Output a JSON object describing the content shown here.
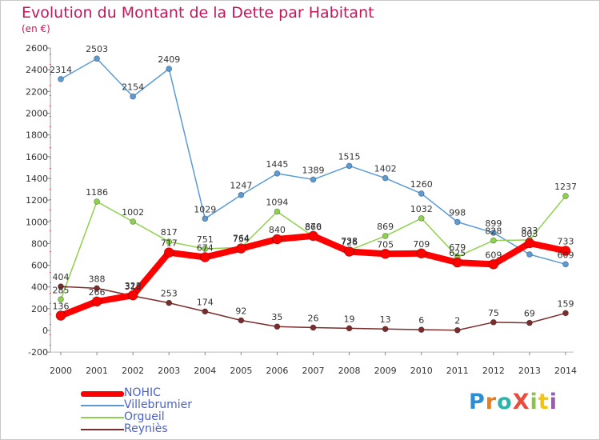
{
  "title": "Evolution du Montant de la Dette par Habitant",
  "unit_label": "(en €)",
  "brand": {
    "text": "ProXiti",
    "letters": [
      {
        "ch": "P",
        "color": "#2b8fd6"
      },
      {
        "ch": "r",
        "color": "#e67e22"
      },
      {
        "ch": "o",
        "color": "#2bb5a9"
      },
      {
        "ch": "X",
        "color": "#e74c3c"
      },
      {
        "ch": "i",
        "color": "#8bc34a"
      },
      {
        "ch": "t",
        "color": "#f1c40f"
      },
      {
        "ch": "i",
        "color": "#9b59b6"
      }
    ]
  },
  "chart_data": {
    "type": "line",
    "title": "Evolution du Montant de la Dette par Habitant",
    "ylabel": "(en €)",
    "xlabel": "",
    "x": [
      "2000",
      "2001",
      "2002",
      "2003",
      "2004",
      "2005",
      "2006",
      "2007",
      "2008",
      "2009",
      "2010",
      "2011",
      "2012",
      "2013",
      "2014"
    ],
    "ylim": [
      -200,
      2600
    ],
    "yticks": [
      -200,
      0,
      200,
      400,
      600,
      800,
      1000,
      1200,
      1400,
      1600,
      1800,
      2000,
      2200,
      2400,
      2600
    ],
    "grid": false,
    "legend_position": "bottom-left",
    "series": [
      {
        "name": "Villebrumier",
        "color": "#5b9bd5",
        "values": [
          2314,
          2503,
          2154,
          2409,
          1029,
          1247,
          1445,
          1389,
          1515,
          1402,
          1260,
          998,
          899,
          700,
          609
        ]
      },
      {
        "name": "Orgueil",
        "color": "#8fd14f",
        "values": [
          285,
          1186,
          1002,
          817,
          751,
          764,
          1094,
          866,
          738,
          869,
          1032,
          679,
          828,
          833,
          1237
        ]
      },
      {
        "name": "Reyniès",
        "color": "#7b2c2c",
        "values": [
          404,
          388,
          318,
          253,
          174,
          92,
          35,
          26,
          19,
          13,
          6,
          2,
          75,
          69,
          159
        ]
      },
      {
        "name": "NOHIC",
        "color": "#ff0000",
        "values": [
          136,
          266,
          323,
          717,
          674,
          754,
          840,
          870,
          726,
          705,
          709,
          625,
          609,
          803,
          733
        ]
      }
    ],
    "labels": {
      "Villebrumier": [
        "2314",
        "2503",
        "2154",
        "2409",
        "1029",
        "1247",
        "1445",
        "1389",
        "1515",
        "1402",
        "1260",
        "998",
        "899",
        "",
        "609"
      ],
      "Orgueil": [
        "285",
        "1186",
        "1002",
        "817",
        "751",
        "764",
        "1094",
        "866",
        "738",
        "869",
        "1032",
        "679",
        "828",
        "833",
        "1237"
      ],
      "Reyniès": [
        "404",
        "388",
        "318",
        "253",
        "174",
        "92",
        "35",
        "26",
        "19",
        "13",
        "6",
        "2",
        "75",
        "69",
        "159"
      ],
      "NOHIC": [
        "136",
        "266",
        "323",
        "717",
        "674",
        "754",
        "840",
        "870",
        "726",
        "705",
        "709",
        "625",
        "609",
        "803",
        "733"
      ]
    }
  },
  "legend": [
    {
      "name": "NOHIC",
      "color": "#ff0000",
      "weight": 7
    },
    {
      "name": "Villebrumier",
      "color": "#5b9bd5",
      "weight": 2
    },
    {
      "name": "Orgueil",
      "color": "#8fd14f",
      "weight": 2
    },
    {
      "name": "Reyniès",
      "color": "#7b2c2c",
      "weight": 2
    }
  ]
}
